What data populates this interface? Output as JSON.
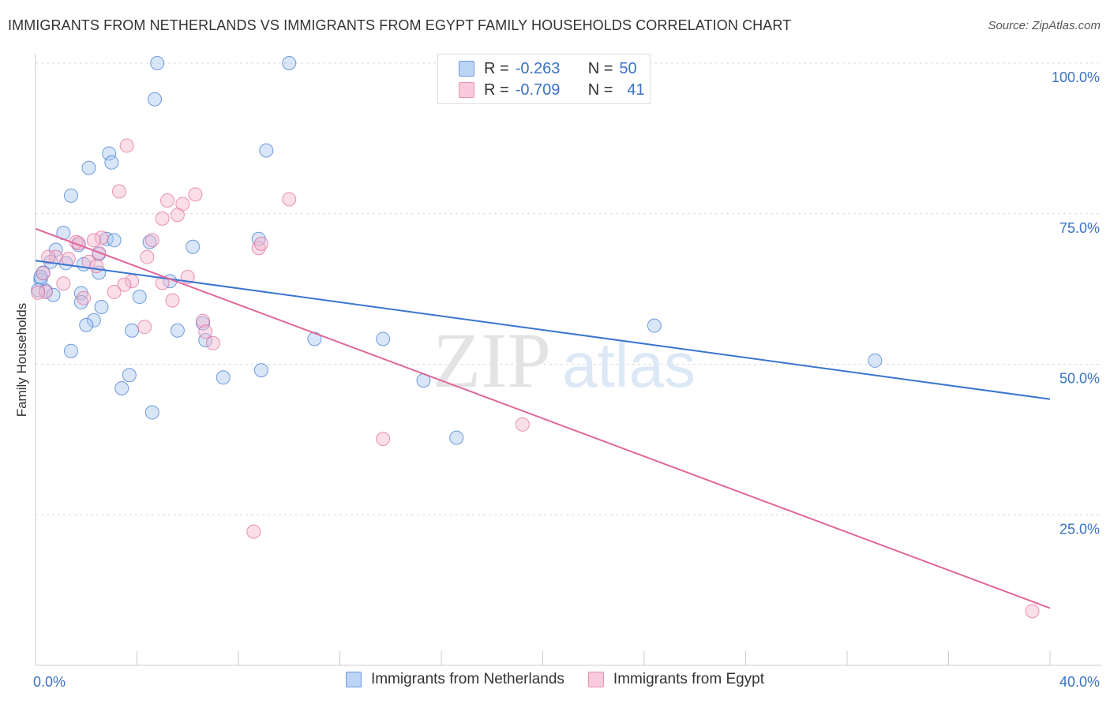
{
  "title": "IMMIGRANTS FROM NETHERLANDS VS IMMIGRANTS FROM EGYPT FAMILY HOUSEHOLDS CORRELATION CHART",
  "source": "Source: ZipAtlas.com",
  "watermark": {
    "zip": "ZIP",
    "atlas": "atlas"
  },
  "legend": {
    "series1": {
      "r_label": "R =",
      "r_value": "-0.263",
      "n_label": "N =",
      "n_value": "50"
    },
    "series2": {
      "r_label": "R =",
      "r_value": "-0.709",
      "n_label": "N =",
      "n_value": "41"
    }
  },
  "bottom_legend": {
    "series1": "Immigrants from Netherlands",
    "series2": "Immigrants from Egypt"
  },
  "chart_data": {
    "type": "scatter",
    "title": "IMMIGRANTS FROM NETHERLANDS VS IMMIGRANTS FROM EGYPT FAMILY HOUSEHOLDS CORRELATION CHART",
    "xlabel": "",
    "ylabel": "Family Households",
    "xlim": [
      0,
      40
    ],
    "ylim": [
      0,
      100
    ],
    "x_tick_labels": [
      "0.0%",
      "40.0%"
    ],
    "y_ticks": [
      25,
      50,
      75,
      100
    ],
    "y_tick_labels": [
      "25.0%",
      "50.0%",
      "75.0%",
      "100.0%"
    ],
    "colors": {
      "series1": "#3a75d1",
      "series2": "#e0679a",
      "series1_fill": "#a8c8f0",
      "series2_fill": "#f5b9cf"
    },
    "series": [
      {
        "name": "Immigrants from Netherlands",
        "trend": {
          "x": [
            0,
            40
          ],
          "y": [
            67.2,
            44.2
          ]
        },
        "points": [
          [
            4.8,
            100
          ],
          [
            10.0,
            100
          ],
          [
            4.7,
            94
          ],
          [
            9.1,
            85.5
          ],
          [
            2.9,
            85
          ],
          [
            3.0,
            83.5
          ],
          [
            2.1,
            82.6
          ],
          [
            1.4,
            78
          ],
          [
            1.1,
            71.8
          ],
          [
            2.8,
            70.8
          ],
          [
            3.1,
            70.6
          ],
          [
            4.5,
            70.3
          ],
          [
            8.8,
            70.8
          ],
          [
            6.2,
            69.5
          ],
          [
            1.7,
            69.8
          ],
          [
            0.8,
            69
          ],
          [
            0.6,
            67
          ],
          [
            1.2,
            66.8
          ],
          [
            1.9,
            66.6
          ],
          [
            2.5,
            68.3
          ],
          [
            0.3,
            65.2
          ],
          [
            0.2,
            64
          ],
          [
            2.5,
            65.2
          ],
          [
            5.3,
            63.8
          ],
          [
            0.4,
            62.2
          ],
          [
            0.7,
            61.5
          ],
          [
            1.8,
            61.8
          ],
          [
            4.1,
            61.2
          ],
          [
            1.8,
            60.3
          ],
          [
            2.6,
            59.5
          ],
          [
            2.3,
            57.3
          ],
          [
            2.0,
            56.5
          ],
          [
            3.8,
            55.6
          ],
          [
            5.6,
            55.6
          ],
          [
            6.6,
            56.8
          ],
          [
            6.7,
            54
          ],
          [
            11.0,
            54.2
          ],
          [
            13.7,
            54.2
          ],
          [
            24.4,
            56.4
          ],
          [
            1.4,
            52.2
          ],
          [
            8.9,
            49
          ],
          [
            3.7,
            48.2
          ],
          [
            7.4,
            47.8
          ],
          [
            15.3,
            47.3
          ],
          [
            33.1,
            50.6
          ],
          [
            3.4,
            46
          ],
          [
            4.6,
            42
          ],
          [
            16.6,
            37.8
          ],
          [
            0.1,
            62.3
          ],
          [
            0.2,
            64.5
          ]
        ]
      },
      {
        "name": "Immigrants from Egypt",
        "trend": {
          "x": [
            0,
            40
          ],
          "y": [
            72.5,
            9.5
          ]
        },
        "points": [
          [
            3.6,
            86.3
          ],
          [
            3.3,
            78.7
          ],
          [
            5.2,
            77.2
          ],
          [
            5.8,
            76.6
          ],
          [
            6.3,
            78.2
          ],
          [
            10.0,
            77.4
          ],
          [
            5.6,
            74.8
          ],
          [
            5.0,
            74.2
          ],
          [
            2.6,
            71
          ],
          [
            2.3,
            70.6
          ],
          [
            4.6,
            70.6
          ],
          [
            1.6,
            70.3
          ],
          [
            8.8,
            69.3
          ],
          [
            8.9,
            70
          ],
          [
            0.8,
            67.8
          ],
          [
            0.5,
            67.8
          ],
          [
            1.3,
            67.5
          ],
          [
            2.1,
            67
          ],
          [
            2.4,
            66.3
          ],
          [
            4.4,
            67.8
          ],
          [
            0.3,
            65.1
          ],
          [
            6.0,
            64.5
          ],
          [
            3.8,
            63.8
          ],
          [
            3.5,
            63.2
          ],
          [
            1.1,
            63.4
          ],
          [
            5.0,
            63.5
          ],
          [
            3.1,
            62
          ],
          [
            1.9,
            61
          ],
          [
            5.4,
            60.6
          ],
          [
            0.4,
            62
          ],
          [
            6.6,
            57.2
          ],
          [
            6.7,
            55.4
          ],
          [
            4.3,
            56.2
          ],
          [
            7.0,
            53.5
          ],
          [
            19.2,
            40
          ],
          [
            13.7,
            37.6
          ],
          [
            8.6,
            22.2
          ],
          [
            39.3,
            9
          ],
          [
            0.1,
            61.9
          ],
          [
            2.5,
            68.5
          ],
          [
            1.7,
            70.1
          ]
        ]
      }
    ]
  }
}
